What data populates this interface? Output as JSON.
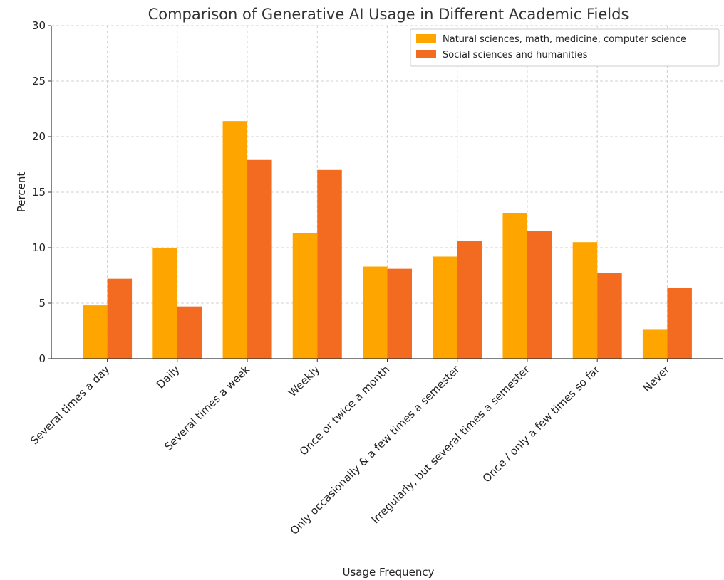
{
  "chart_data": {
    "type": "bar",
    "title": "Comparison of Generative AI Usage in Different Academic Fields",
    "xlabel": "Usage Frequency",
    "ylabel": "Percent",
    "ylim": [
      0,
      30
    ],
    "yticks": [
      0,
      5,
      10,
      15,
      20,
      25,
      30
    ],
    "grid": true,
    "legend_position": "top-right",
    "categories": [
      "Several times a day",
      "Daily",
      "Several times a week",
      "Weekly",
      "Once or twice a month",
      "Only occasionally & a few times a semester",
      "Irregularly, but several times a semester",
      "Once / only a few times so far",
      "Never"
    ],
    "series": [
      {
        "name": "Natural sciences, math, medicine, computer science",
        "color": "#FFA500",
        "values": [
          4.8,
          10.0,
          21.4,
          11.3,
          8.3,
          9.2,
          13.1,
          10.5,
          2.6
        ]
      },
      {
        "name": "Social sciences and humanities",
        "color": "#F26B21",
        "values": [
          7.2,
          4.7,
          17.9,
          17.0,
          8.1,
          10.6,
          11.5,
          7.7,
          6.4
        ]
      }
    ]
  }
}
